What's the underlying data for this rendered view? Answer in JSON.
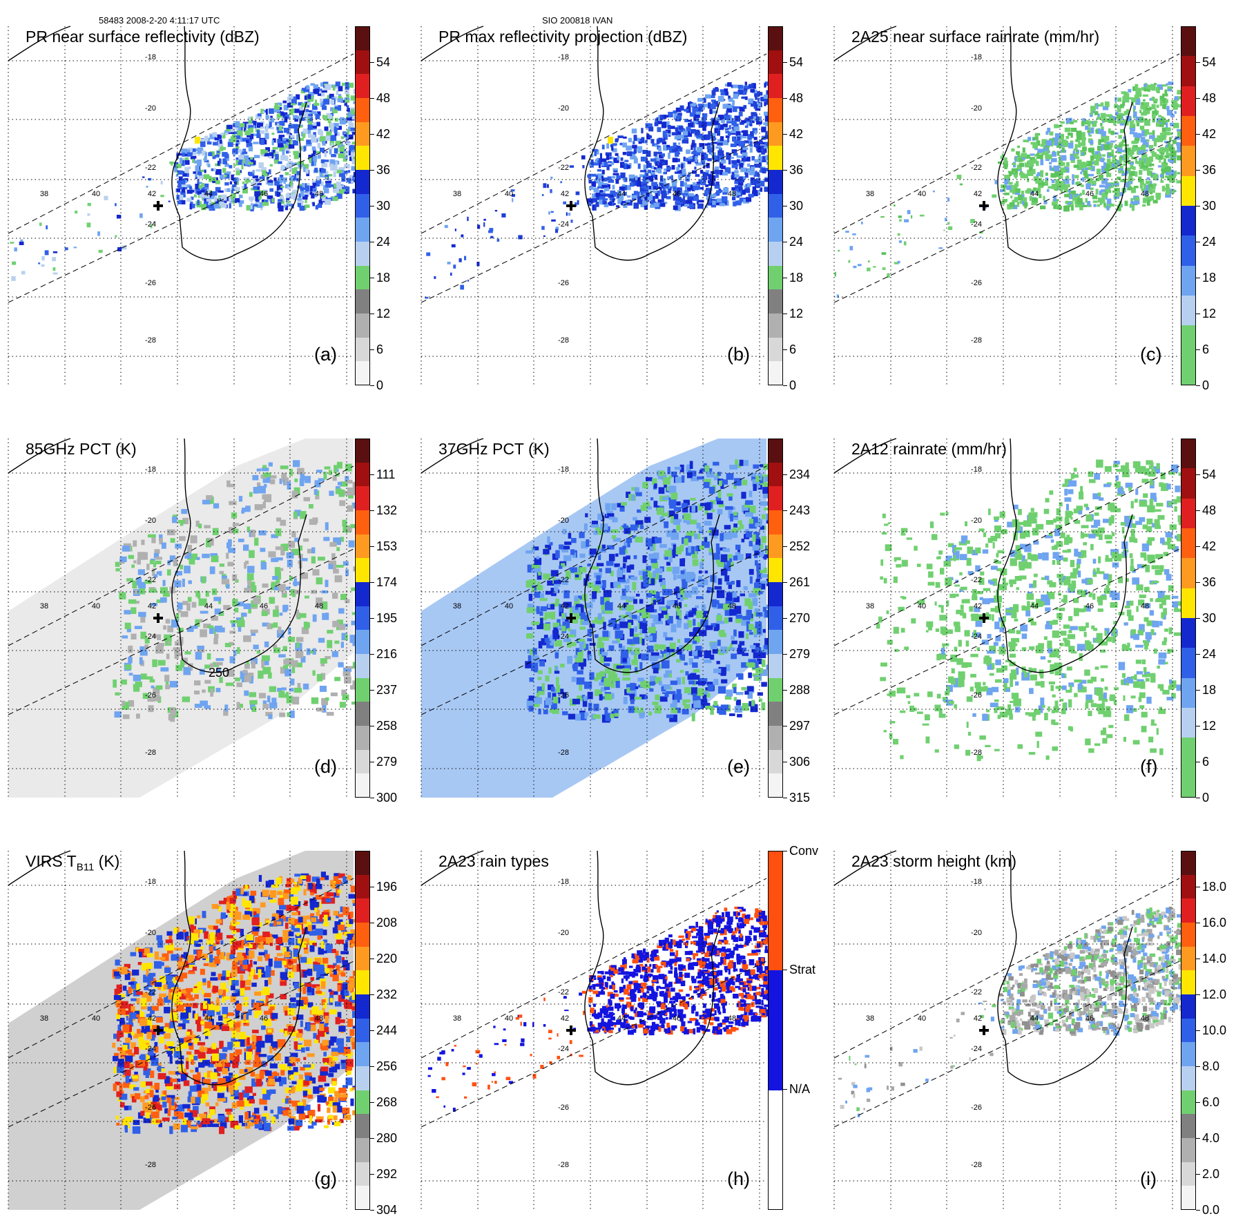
{
  "header": {
    "left": "58483 2008-2-20 4:11:17 UTC",
    "center": "SIO 200818 IVAN"
  },
  "map_grid": {
    "lon_labels": [
      "38",
      "40",
      "42",
      "44",
      "46",
      "48"
    ],
    "lat_labels": [
      "-18",
      "-20",
      "-22",
      "-24",
      "-26",
      "-28"
    ]
  },
  "panels": [
    {
      "id": "a",
      "title": "PR near surface reflectivity (dBZ)",
      "label": "(a)",
      "colorbar": {
        "ticks": [
          "54",
          "48",
          "42",
          "36",
          "30",
          "24",
          "18",
          "12",
          "6",
          "0"
        ],
        "colors": [
          "#5a1010",
          "#a01010",
          "#e02020",
          "#ff6010",
          "#ff9a20",
          "#ffe600",
          "#1428d0",
          "#3060e8",
          "#6fa4f0",
          "#b8d0f0",
          "#70d070",
          "#808080",
          "#b0b0b0",
          "#d8d8d8",
          "#f4f4f4"
        ]
      },
      "overlay_type": "swath_blue"
    },
    {
      "id": "b",
      "title": "PR max reflectivity projection (dBZ)",
      "label": "(b)",
      "colorbar": {
        "ticks": [
          "54",
          "48",
          "42",
          "36",
          "30",
          "24",
          "18",
          "12",
          "6",
          "0"
        ],
        "colors": [
          "#5a1010",
          "#a01010",
          "#e02020",
          "#ff6010",
          "#ff9a20",
          "#ffe600",
          "#1428d0",
          "#3060e8",
          "#6fa4f0",
          "#b8d0f0",
          "#70d070",
          "#808080",
          "#b0b0b0",
          "#d8d8d8",
          "#f4f4f4"
        ]
      },
      "overlay_type": "swath_blue_dense"
    },
    {
      "id": "c",
      "title": "2A25 near surface rainrate (mm/hr)",
      "label": "(c)",
      "colorbar": {
        "ticks": [
          "54",
          "48",
          "42",
          "36",
          "30",
          "24",
          "18",
          "12",
          "6",
          "0"
        ],
        "colors": [
          "#5a1010",
          "#a01010",
          "#e02020",
          "#ff6010",
          "#ff9a20",
          "#ffe600",
          "#1428d0",
          "#3060e8",
          "#6fa4f0",
          "#b8d0f0",
          "#70d070",
          "#70d070"
        ]
      },
      "overlay_type": "swath_green"
    },
    {
      "id": "d",
      "title": "85GHz PCT (K)",
      "label": "(d)",
      "colorbar": {
        "ticks": [
          "111",
          "132",
          "153",
          "174",
          "195",
          "216",
          "237",
          "258",
          "279",
          "300"
        ],
        "colors": [
          "#5a1010",
          "#a01010",
          "#e02020",
          "#ff6010",
          "#ff9a20",
          "#ffe600",
          "#1428d0",
          "#3060e8",
          "#6fa4f0",
          "#b8d0f0",
          "#70d070",
          "#808080",
          "#b0b0b0",
          "#d8d8d8",
          "#f4f4f4"
        ]
      },
      "contour_label": "250",
      "overlay_type": "wide_gray"
    },
    {
      "id": "e",
      "title": "37GHz PCT (K)",
      "label": "(e)",
      "colorbar": {
        "ticks": [
          "234",
          "243",
          "252",
          "261",
          "270",
          "279",
          "288",
          "297",
          "306",
          "315"
        ],
        "colors": [
          "#5a1010",
          "#a01010",
          "#e02020",
          "#ff6010",
          "#ff9a20",
          "#ffe600",
          "#1428d0",
          "#3060e8",
          "#6fa4f0",
          "#b8d0f0",
          "#70d070",
          "#808080",
          "#b0b0b0",
          "#d8d8d8",
          "#f4f4f4"
        ]
      },
      "overlay_type": "wide_blue"
    },
    {
      "id": "f",
      "title": "2A12 rainrate (mm/hr)",
      "label": "(f)",
      "colorbar": {
        "ticks": [
          "54",
          "48",
          "42",
          "36",
          "30",
          "24",
          "18",
          "12",
          "6",
          "0"
        ],
        "colors": [
          "#5a1010",
          "#a01010",
          "#e02020",
          "#ff6010",
          "#ff9a20",
          "#ffe600",
          "#1428d0",
          "#3060e8",
          "#6fa4f0",
          "#b8d0f0",
          "#70d070",
          "#70d070"
        ]
      },
      "overlay_type": "wide_green"
    },
    {
      "id": "g",
      "title_main": "VIRS T",
      "title_sub": "B11",
      "title_end": " (K)",
      "label": "(g)",
      "colorbar": {
        "ticks": [
          "196",
          "208",
          "220",
          "232",
          "244",
          "256",
          "268",
          "280",
          "292",
          "304"
        ],
        "colors": [
          "#5a1010",
          "#a01010",
          "#e02020",
          "#ff6010",
          "#ff9a20",
          "#ffe600",
          "#1428d0",
          "#3060e8",
          "#6fa4f0",
          "#b8d0f0",
          "#70d070",
          "#808080",
          "#b0b0b0",
          "#d8d8d8",
          "#f4f4f4"
        ]
      },
      "overlay_type": "wide_ir"
    },
    {
      "id": "h",
      "title": "2A23 rain types",
      "label": "(h)",
      "colorbar": {
        "ticks": [
          "Conv",
          "Strat",
          "N/A"
        ],
        "colors": [
          "#ff5010",
          "#1414e0",
          "#ffffff"
        ]
      },
      "overlay_type": "swath_types"
    },
    {
      "id": "i",
      "title": "2A23 storm height (km)",
      "label": "(i)",
      "colorbar": {
        "ticks": [
          "18.0",
          "16.0",
          "14.0",
          "12.0",
          "10.0",
          "8.0",
          "6.0",
          "4.0",
          "2.0",
          "0.0"
        ],
        "colors": [
          "#5a1010",
          "#a01010",
          "#e02020",
          "#ff6010",
          "#ff9a20",
          "#ffe600",
          "#1428d0",
          "#3060e8",
          "#6fa4f0",
          "#b8d0f0",
          "#70d070",
          "#808080",
          "#b0b0b0",
          "#d8d8d8",
          "#f4f4f4"
        ]
      },
      "overlay_type": "swath_gray"
    }
  ]
}
